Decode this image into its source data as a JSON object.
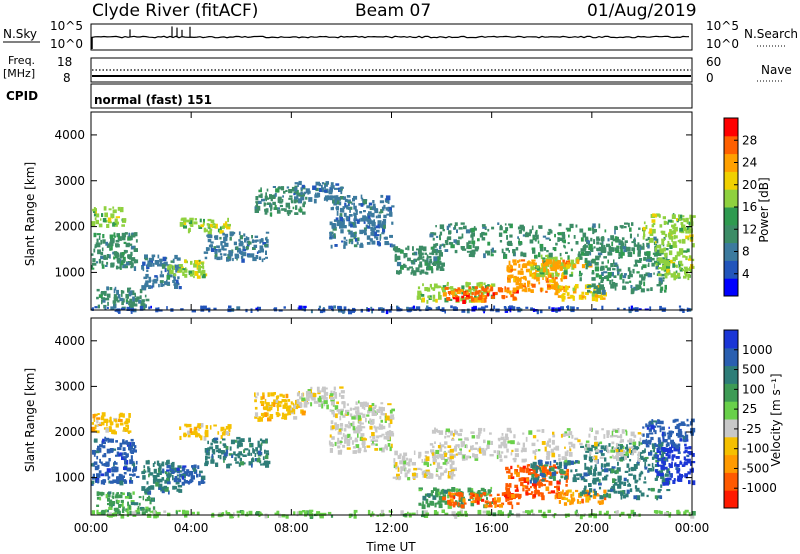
{
  "header": {
    "station": "Clyde River (fitACF)",
    "beam": "Beam 07",
    "date": "01/Aug/2019"
  },
  "top_panels": {
    "nsky_label": "N.Sky",
    "nsearch_label": "N.Search",
    "freq_label_1": "Freq.",
    "freq_label_2": "[MHz]",
    "nave_label": "Nave",
    "cpid_label": "CPID",
    "cpid_value": "normal (fast) 151",
    "noise_left_ticks": [
      "10^5",
      "10^0"
    ],
    "noise_right_ticks": [
      "10^5",
      "10^0"
    ],
    "freq_left_ticks": [
      "18",
      "8"
    ],
    "freq_right_ticks": [
      "60",
      "0"
    ]
  },
  "colors": {
    "power_scale": [
      "#0000ff",
      "#2255bb",
      "#3c7a9e",
      "#3c8c66",
      "#2f9a50",
      "#8fd13f",
      "#f0d000",
      "#ffa000",
      "#ff6000",
      "#ff0000"
    ],
    "velocity_scale": [
      "#1b36d6",
      "#2a5fb0",
      "#2e7d78",
      "#3e9b55",
      "#69d04a",
      "#c8c8c8",
      "#f5c000",
      "#ff9a00",
      "#ff5a00",
      "#ff1a00"
    ]
  },
  "chart_data": [
    {
      "type": "heatmap",
      "name": "power",
      "ylabel": "Slant Range [km]",
      "x_ticks": [
        "00:00",
        "04:00",
        "08:00",
        "12:00",
        "16:00",
        "20:00",
        "00:00"
      ],
      "y_ticks": [
        "1000",
        "2000",
        "3000",
        "4000"
      ],
      "y_values": [
        1000,
        2000,
        3000,
        4000
      ],
      "xlim": [
        0,
        24
      ],
      "ylim": [
        180,
        4500
      ],
      "colorbar_label": "Power [dB]",
      "colorbar_ticks": [
        "4",
        "8",
        "12",
        "16",
        "20",
        "24",
        "28"
      ],
      "colorbar_range": [
        0,
        32
      ],
      "blobs": [
        {
          "x": [
            0.0,
            1.8
          ],
          "y": [
            1100,
            1900
          ],
          "level": 12
        },
        {
          "x": [
            0.0,
            1.3
          ],
          "y": [
            2050,
            2450
          ],
          "level": 16
        },
        {
          "x": [
            0.2,
            2.2
          ],
          "y": [
            250,
            700
          ],
          "level": 10
        },
        {
          "x": [
            2.0,
            3.5
          ],
          "y": [
            700,
            1400
          ],
          "level": 8
        },
        {
          "x": [
            3.0,
            4.5
          ],
          "y": [
            900,
            1300
          ],
          "level": 18
        },
        {
          "x": [
            3.5,
            5.5
          ],
          "y": [
            1900,
            2200
          ],
          "level": 17
        },
        {
          "x": [
            4.5,
            7.0
          ],
          "y": [
            1300,
            1900
          ],
          "level": 8
        },
        {
          "x": [
            6.5,
            8.5
          ],
          "y": [
            2300,
            2900
          ],
          "level": 9
        },
        {
          "x": [
            8.0,
            10.0
          ],
          "y": [
            2600,
            3000
          ],
          "level": 8
        },
        {
          "x": [
            9.5,
            12.0
          ],
          "y": [
            1600,
            2700
          ],
          "level": 8
        },
        {
          "x": [
            12.0,
            14.0
          ],
          "y": [
            1000,
            1600
          ],
          "level": 10
        },
        {
          "x": [
            13.0,
            16.0
          ],
          "y": [
            400,
            800
          ],
          "level": 16
        },
        {
          "x": [
            14.0,
            17.0
          ],
          "y": [
            400,
            700
          ],
          "level": 27
        },
        {
          "x": [
            16.5,
            19.0
          ],
          "y": [
            600,
            1300
          ],
          "level": 24
        },
        {
          "x": [
            17.5,
            19.5
          ],
          "y": [
            950,
            1400
          ],
          "level": 18
        },
        {
          "x": [
            18.5,
            20.5
          ],
          "y": [
            450,
            750
          ],
          "level": 22
        },
        {
          "x": [
            18.0,
            20.0
          ],
          "y": [
            1100,
            1300
          ],
          "level": 26
        },
        {
          "x": [
            19.5,
            23.0
          ],
          "y": [
            600,
            1800
          ],
          "level": 10
        },
        {
          "x": [
            22.5,
            24.0
          ],
          "y": [
            900,
            1700
          ],
          "level": 16
        },
        {
          "x": [
            22.0,
            24.0
          ],
          "y": [
            1700,
            2300
          ],
          "level": 18
        },
        {
          "x": [
            13.5,
            22.0
          ],
          "y": [
            1400,
            2100
          ],
          "level": 9
        },
        {
          "x": [
            0.0,
            24.0
          ],
          "y": [
            190,
            280
          ],
          "level": 5
        }
      ]
    },
    {
      "type": "heatmap",
      "name": "velocity",
      "ylabel": "Slant Range [km]",
      "xlabel": "Time UT",
      "x_ticks": [
        "00:00",
        "04:00",
        "08:00",
        "12:00",
        "16:00",
        "20:00",
        "00:00"
      ],
      "y_ticks": [
        "1000",
        "2000",
        "3000",
        "4000"
      ],
      "y_values": [
        1000,
        2000,
        3000,
        4000
      ],
      "xlim": [
        0,
        24
      ],
      "ylim": [
        180,
        4500
      ],
      "colorbar_label": "Velocity [m s⁻¹]",
      "colorbar_ticks": [
        "1000",
        "500",
        "100",
        "25",
        "-25",
        "-100",
        "-500",
        "-1000"
      ],
      "blobs": [
        {
          "x": [
            0.0,
            1.8
          ],
          "y": [
            900,
            1900
          ],
          "level": 1
        },
        {
          "x": [
            0.0,
            1.5
          ],
          "y": [
            2000,
            2450
          ],
          "level": 6
        },
        {
          "x": [
            0.2,
            2.5
          ],
          "y": [
            250,
            700
          ],
          "level": 3
        },
        {
          "x": [
            2.0,
            3.5
          ],
          "y": [
            700,
            1400
          ],
          "level": 2
        },
        {
          "x": [
            3.0,
            4.5
          ],
          "y": [
            900,
            1300
          ],
          "level": 1
        },
        {
          "x": [
            3.5,
            5.5
          ],
          "y": [
            1900,
            2200
          ],
          "level": 6
        },
        {
          "x": [
            4.5,
            7.0
          ],
          "y": [
            1300,
            1900
          ],
          "level": 2
        },
        {
          "x": [
            6.5,
            8.5
          ],
          "y": [
            2300,
            2900
          ],
          "level": 6
        },
        {
          "x": [
            8.0,
            10.0
          ],
          "y": [
            2600,
            3000
          ],
          "level": 5
        },
        {
          "x": [
            9.5,
            12.0
          ],
          "y": [
            1600,
            2700
          ],
          "level": 5
        },
        {
          "x": [
            12.0,
            14.5
          ],
          "y": [
            1000,
            1600
          ],
          "level": 5
        },
        {
          "x": [
            13.0,
            16.0
          ],
          "y": [
            400,
            800
          ],
          "level": 3
        },
        {
          "x": [
            14.0,
            17.0
          ],
          "y": [
            400,
            700
          ],
          "level": 8
        },
        {
          "x": [
            16.5,
            19.0
          ],
          "y": [
            600,
            1300
          ],
          "level": 8
        },
        {
          "x": [
            17.5,
            19.5
          ],
          "y": [
            950,
            1400
          ],
          "level": 2
        },
        {
          "x": [
            18.5,
            20.5
          ],
          "y": [
            450,
            750
          ],
          "level": 7
        },
        {
          "x": [
            19.5,
            23.0
          ],
          "y": [
            600,
            1800
          ],
          "level": 2
        },
        {
          "x": [
            22.5,
            24.0
          ],
          "y": [
            900,
            1700
          ],
          "level": 0
        },
        {
          "x": [
            22.0,
            24.0
          ],
          "y": [
            1700,
            2300
          ],
          "level": 1
        },
        {
          "x": [
            13.5,
            22.0
          ],
          "y": [
            1400,
            2100
          ],
          "level": 5
        },
        {
          "x": [
            0.0,
            24.0
          ],
          "y": [
            190,
            300
          ],
          "level": 4
        }
      ]
    }
  ]
}
